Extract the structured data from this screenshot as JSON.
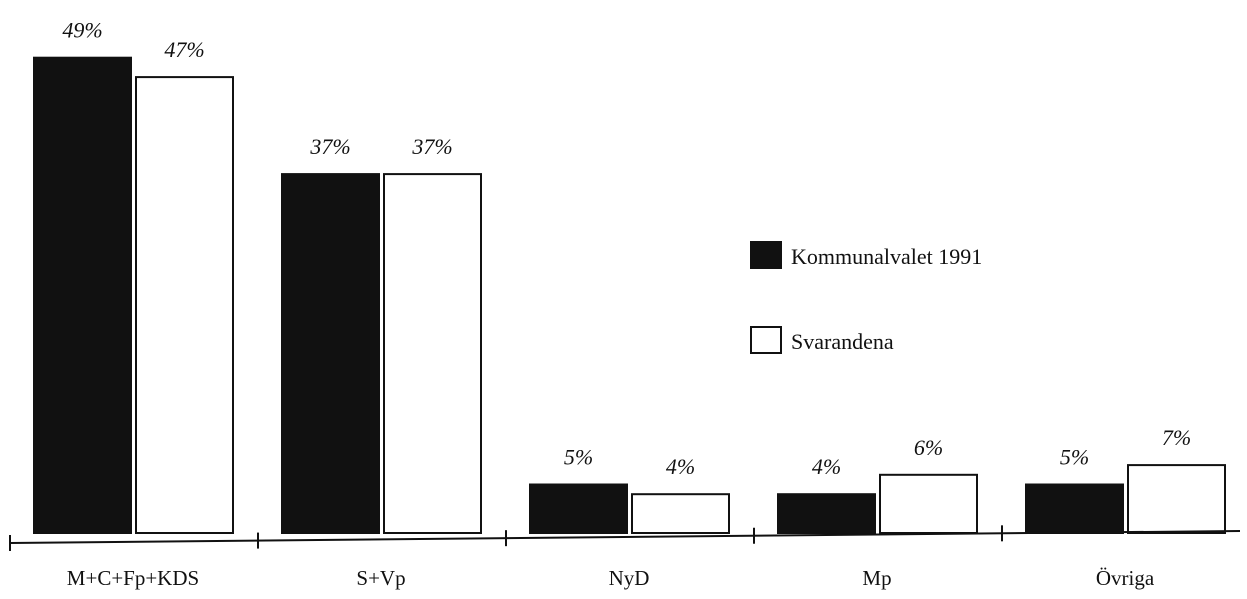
{
  "chart_data": {
    "type": "bar",
    "categories": [
      "M+C+Fp+KDS",
      "S+Vp",
      "NyD",
      "Mp",
      "Övriga"
    ],
    "series": [
      {
        "name": "Kommunalvalet 1991",
        "values": [
          49,
          37,
          5,
          4,
          5
        ],
        "labels": [
          "49%",
          "37%",
          "5%",
          "4%",
          "5%"
        ],
        "color": "#111111"
      },
      {
        "name": "Svarandena",
        "values": [
          47,
          37,
          4,
          6,
          7
        ],
        "labels": [
          "47%",
          "37%",
          "4%",
          "6%",
          "7%"
        ],
        "color": "#ffffff"
      }
    ],
    "unit": "%",
    "ylim": [
      0,
      55
    ],
    "grid": false,
    "legend": "right",
    "xlabel": "",
    "ylabel": "",
    "title": ""
  }
}
